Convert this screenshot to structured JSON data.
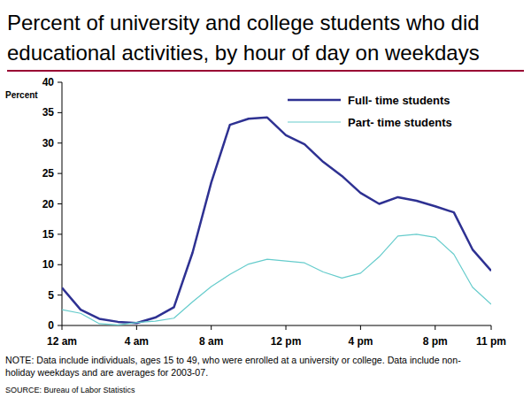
{
  "chart_data": {
    "type": "line",
    "title": [
      "Percent of university and college students who did",
      "educational activities, by hour of day on weekdays"
    ],
    "ylabel": "Percent",
    "x": [
      0,
      1,
      2,
      3,
      4,
      5,
      6,
      7,
      8,
      9,
      10,
      11,
      12,
      13,
      14,
      15,
      16,
      17,
      18,
      19,
      20,
      21,
      22,
      23
    ],
    "xlim": [
      0,
      23
    ],
    "xticks": [
      {
        "value": 0,
        "label": "12 am"
      },
      {
        "value": 4,
        "label": "4 am"
      },
      {
        "value": 8,
        "label": "8 am"
      },
      {
        "value": 12,
        "label": "12 pm"
      },
      {
        "value": 16,
        "label": "4 pm"
      },
      {
        "value": 20,
        "label": "8 pm"
      },
      {
        "value": 23,
        "label": "11 pm"
      }
    ],
    "ylim": [
      0,
      40
    ],
    "yticks": [
      0,
      5,
      10,
      15,
      20,
      25,
      30,
      35,
      40
    ],
    "grid": false,
    "legend": "upper right",
    "series": [
      {
        "name": "Full- time students",
        "color": "#2e3192",
        "values": [
          6.2,
          2.6,
          1.1,
          0.6,
          0.4,
          1.3,
          3.0,
          12,
          23.5,
          33,
          34,
          34.2,
          31.3,
          29.8,
          26.9,
          24.6,
          21.8,
          20,
          21.1,
          20.5,
          19.6,
          18.6,
          12.5,
          9
        ]
      },
      {
        "name": "Part- time students",
        "color": "#66cccc",
        "values": [
          2.6,
          2.0,
          0.3,
          0.1,
          0.5,
          0.7,
          1.2,
          3.9,
          6.4,
          8.4,
          10.1,
          10.9,
          10.6,
          10.3,
          8.8,
          7.8,
          8.6,
          11.3,
          14.7,
          15,
          14.5,
          11.7,
          6.3,
          3.5
        ]
      }
    ],
    "note": [
      "NOTE: Data include individuals, ages 15 to 49, who were enrolled at a university or college. Data include non-",
      "holiday weekdays and are averages for 2003-07."
    ],
    "source": "SOURCE: Bureau of Labor Statistics"
  }
}
